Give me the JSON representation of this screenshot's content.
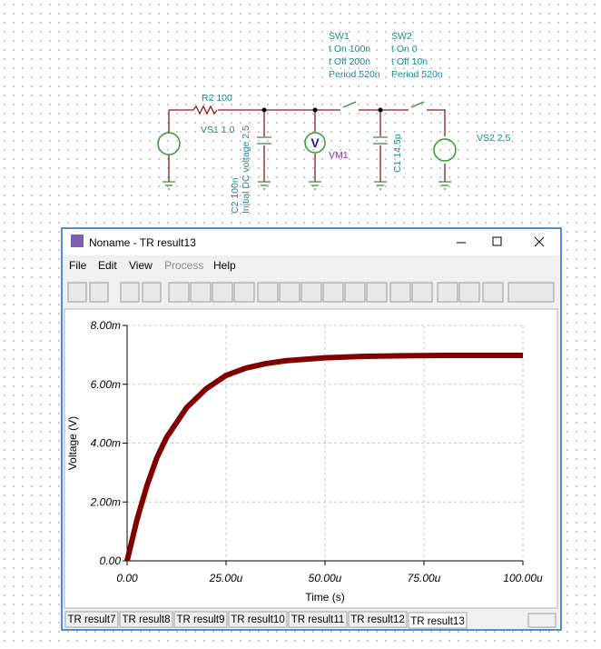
{
  "schematic": {
    "r2": "R2 100",
    "vs1": "VS1 1.0",
    "c2": "C2 100n",
    "c2_init": "Initial DC voltage 2.5",
    "vm1_symbol": "V",
    "vm1": "VM1",
    "c1": "C1 14.5p",
    "vs2": "VS2 2.5",
    "sw1": [
      "SW1",
      "t On 100n",
      "t Off 200n",
      "Period 520n"
    ],
    "sw2": [
      "SW2",
      "t On 0",
      "t Off 10n",
      "Period 520n"
    ]
  },
  "window": {
    "title": "Noname - TR result13",
    "menu": [
      "File",
      "Edit",
      "View",
      "Process",
      "Help"
    ],
    "tabs": [
      "TR result7",
      "TR result8",
      "TR result9",
      "TR result10",
      "TR result11",
      "TR result12",
      "TR result13"
    ]
  },
  "chart_data": {
    "type": "line",
    "x_label": "Time (s)",
    "y_label": "Voltage (V)",
    "x": [
      0,
      2.5e-06,
      5e-06,
      7.5e-06,
      1e-05,
      1.5e-05,
      2e-05,
      2.5e-05,
      3e-05,
      3.5e-05,
      4e-05,
      5e-05,
      6e-05,
      7e-05,
      8e-05,
      9e-05,
      0.0001
    ],
    "series": [
      {
        "color": "#800000",
        "values": [
          0,
          0.0014,
          0.00255,
          0.0035,
          0.0042,
          0.0052,
          0.00585,
          0.0063,
          0.00655,
          0.0067,
          0.0068,
          0.0069,
          0.00695,
          0.00697,
          0.00698,
          0.00698,
          0.00698
        ]
      }
    ],
    "xlim": [
      0,
      0.0001
    ],
    "ylim": [
      0,
      0.008
    ],
    "xticks": [
      {
        "value": 0,
        "label": "0.00"
      },
      {
        "value": 2.5e-05,
        "label": "25.00u"
      },
      {
        "value": 5e-05,
        "label": "50.00u"
      },
      {
        "value": 7.5e-05,
        "label": "75.00u"
      },
      {
        "value": 0.0001,
        "label": "100.00u"
      }
    ],
    "yticks": [
      {
        "value": 0,
        "label": "0.00"
      },
      {
        "value": 0.002,
        "label": "2.00m"
      },
      {
        "value": 0.004,
        "label": "4.00m"
      },
      {
        "value": 0.006,
        "label": "6.00m"
      },
      {
        "value": 0.008,
        "label": "8.00m"
      }
    ],
    "grid": true
  }
}
